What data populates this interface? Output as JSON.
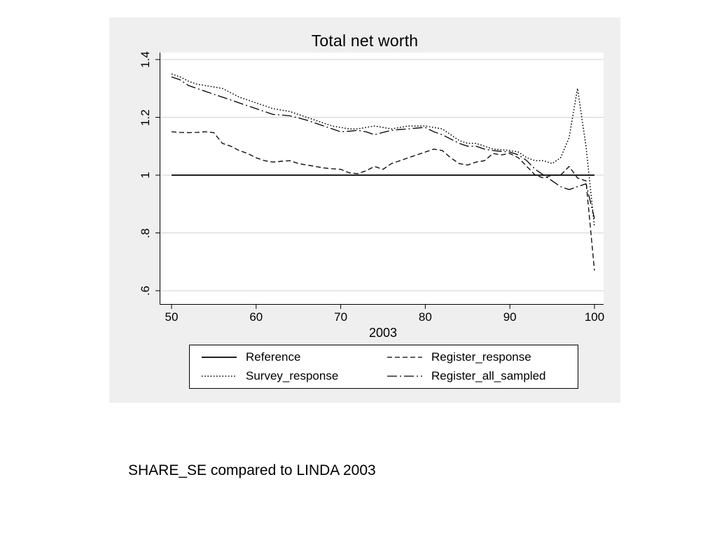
{
  "page": {
    "caption": "SHARE_SE compared to LINDA 2003"
  },
  "chart_data": {
    "type": "line",
    "title": "Total net worth",
    "xlabel": "2003",
    "ylabel": "",
    "xlim": [
      50,
      100
    ],
    "ylim": [
      0.6,
      1.4
    ],
    "xticks": [
      50,
      60,
      70,
      80,
      90,
      100
    ],
    "yticks": [
      0.6,
      0.8,
      1,
      1.2,
      1.4
    ],
    "ytick_labels": [
      ".6",
      ".8",
      "1",
      "1.2",
      "1.4"
    ],
    "grid": "horizontal",
    "legend_position": "bottom",
    "plot_bg": "#ffffff",
    "outer_bg": "#efefef",
    "grid_color": "#d9d9d9",
    "line_color": "#000000",
    "series": [
      {
        "name": "Reference",
        "style": "solid",
        "x": [
          50,
          100
        ],
        "y": [
          1,
          1
        ]
      },
      {
        "name": "Register_response",
        "style": "dashed",
        "x": [
          50,
          51,
          52,
          53,
          54,
          55,
          56,
          57,
          58,
          59,
          60,
          61,
          62,
          63,
          64,
          65,
          66,
          67,
          68,
          69,
          70,
          71,
          72,
          73,
          74,
          75,
          76,
          77,
          78,
          79,
          80,
          81,
          82,
          83,
          84,
          85,
          86,
          87,
          88,
          89,
          90,
          91,
          92,
          93,
          94,
          95,
          96,
          97,
          98,
          99,
          100
        ],
        "y": [
          1.15,
          1.148,
          1.147,
          1.148,
          1.15,
          1.147,
          1.11,
          1.1,
          1.085,
          1.075,
          1.06,
          1.05,
          1.045,
          1.048,
          1.05,
          1.04,
          1.035,
          1.03,
          1.025,
          1.022,
          1.02,
          1.008,
          1.005,
          1.015,
          1.03,
          1.02,
          1.04,
          1.05,
          1.06,
          1.07,
          1.08,
          1.09,
          1.085,
          1.06,
          1.04,
          1.035,
          1.045,
          1.05,
          1.075,
          1.07,
          1.075,
          1.06,
          1.03,
          1.0,
          0.99,
          1.0,
          1.0,
          1.03,
          0.99,
          0.98,
          0.67
        ]
      },
      {
        "name": "Survey_response",
        "style": "dotted",
        "x": [
          50,
          51,
          52,
          53,
          54,
          55,
          56,
          57,
          58,
          59,
          60,
          61,
          62,
          63,
          64,
          65,
          66,
          67,
          68,
          69,
          70,
          71,
          72,
          73,
          74,
          75,
          76,
          77,
          78,
          79,
          80,
          81,
          82,
          83,
          84,
          85,
          86,
          87,
          88,
          89,
          90,
          91,
          92,
          93,
          94,
          95,
          96,
          97,
          98,
          99,
          100
        ],
        "y": [
          1.35,
          1.34,
          1.325,
          1.315,
          1.31,
          1.305,
          1.3,
          1.285,
          1.27,
          1.26,
          1.25,
          1.24,
          1.23,
          1.225,
          1.22,
          1.21,
          1.2,
          1.19,
          1.18,
          1.17,
          1.165,
          1.16,
          1.16,
          1.165,
          1.17,
          1.165,
          1.16,
          1.165,
          1.17,
          1.17,
          1.17,
          1.165,
          1.16,
          1.14,
          1.12,
          1.11,
          1.11,
          1.1,
          1.09,
          1.088,
          1.085,
          1.08,
          1.06,
          1.05,
          1.05,
          1.04,
          1.06,
          1.13,
          1.3,
          1.1,
          0.82
        ]
      },
      {
        "name": "Register_all_sampled",
        "style": "dashdot",
        "x": [
          50,
          51,
          52,
          53,
          54,
          55,
          56,
          57,
          58,
          59,
          60,
          61,
          62,
          63,
          64,
          65,
          66,
          67,
          68,
          69,
          70,
          71,
          72,
          73,
          74,
          75,
          76,
          77,
          78,
          79,
          80,
          81,
          82,
          83,
          84,
          85,
          86,
          87,
          88,
          89,
          90,
          91,
          92,
          93,
          94,
          95,
          96,
          97,
          98,
          99,
          100
        ],
        "y": [
          1.34,
          1.33,
          1.31,
          1.3,
          1.29,
          1.28,
          1.27,
          1.26,
          1.25,
          1.24,
          1.23,
          1.22,
          1.21,
          1.208,
          1.205,
          1.198,
          1.19,
          1.18,
          1.17,
          1.16,
          1.15,
          1.152,
          1.155,
          1.15,
          1.14,
          1.148,
          1.155,
          1.158,
          1.16,
          1.163,
          1.165,
          1.15,
          1.14,
          1.125,
          1.11,
          1.1,
          1.1,
          1.09,
          1.085,
          1.082,
          1.08,
          1.07,
          1.05,
          1.02,
          1.0,
          0.98,
          0.96,
          0.95,
          0.96,
          0.97,
          0.85
        ]
      }
    ]
  }
}
